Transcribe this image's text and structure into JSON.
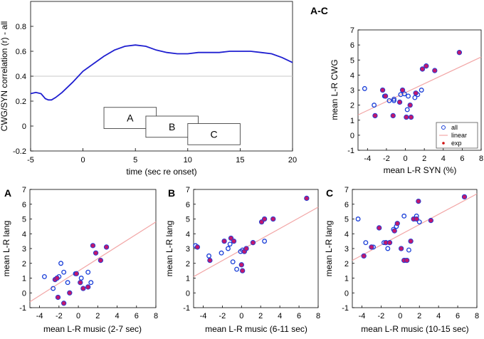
{
  "colors": {
    "line": "#1f1fd0",
    "fit": "#f2a6a6",
    "exp_fill": "#c0186e",
    "open_edge": "#1a3fd8",
    "refline": "#c8c8c8"
  },
  "chart_data": [
    {
      "id": "timecourse",
      "type": "line",
      "xlabel": "time (sec re onset)",
      "ylabel": "CWG/SYN correlation (r) - all",
      "xlim": [
        -5,
        20
      ],
      "ylim": [
        -0.2,
        1.0
      ],
      "xticks": [
        "-5",
        "0",
        "5",
        "10",
        "15",
        "20"
      ],
      "yticks": [
        "-0.2",
        "0",
        "0.2",
        "0.4",
        "0.6",
        "0.8"
      ],
      "reference_y": 0.4,
      "x": [
        -5,
        -4.5,
        -4,
        -3.6,
        -3.3,
        -3,
        -2.6,
        -2,
        -1,
        0,
        1,
        2,
        3,
        4,
        5,
        6,
        7,
        8,
        9,
        10,
        11,
        12,
        13,
        14,
        15,
        16,
        17,
        18,
        19,
        20
      ],
      "y": [
        0.26,
        0.27,
        0.26,
        0.22,
        0.21,
        0.21,
        0.23,
        0.27,
        0.35,
        0.44,
        0.5,
        0.56,
        0.61,
        0.64,
        0.65,
        0.64,
        0.61,
        0.59,
        0.58,
        0.58,
        0.59,
        0.59,
        0.59,
        0.6,
        0.6,
        0.6,
        0.59,
        0.58,
        0.55,
        0.51
      ],
      "windows": [
        {
          "label": "A",
          "start": 2,
          "end": 7
        },
        {
          "label": "B",
          "start": 6,
          "end": 11
        },
        {
          "label": "C",
          "start": 10,
          "end": 15
        }
      ]
    },
    {
      "id": "scatter-ac",
      "type": "scatter",
      "panel_label": "A-C",
      "xlabel": "mean L-R SYN (%)",
      "ylabel": "mean L-R CWG",
      "xlim": [
        -5,
        8
      ],
      "ylim": [
        -1,
        7
      ],
      "xticks": [
        "-4",
        "-2",
        "0",
        "2",
        "4",
        "6",
        "8"
      ],
      "yticks": [
        "-1",
        "0",
        "1",
        "2",
        "3",
        "4",
        "5",
        "6",
        "7"
      ],
      "fit": {
        "x": [
          -5,
          8
        ],
        "y": [
          1.35,
          5.2
        ]
      },
      "legend": {
        "entries": [
          "all",
          "linear",
          "exp"
        ],
        "position": "bottom-right"
      },
      "series": [
        {
          "name": "all",
          "points": [
            [
              -4.3,
              3.1
            ],
            [
              -3.3,
              2.0
            ],
            [
              -2.2,
              2.6
            ],
            [
              -1.7,
              2.3
            ],
            [
              -1.2,
              2.3
            ],
            [
              -1.2,
              2.4
            ],
            [
              -0.5,
              2.7
            ],
            [
              -0.1,
              2.75
            ],
            [
              0.2,
              1.7
            ],
            [
              0.3,
              2.6
            ],
            [
              1.0,
              2.5
            ],
            [
              1.3,
              2.7
            ],
            [
              1.7,
              3.0
            ]
          ]
        },
        {
          "name": "exp",
          "points": [
            [
              -3.2,
              1.3
            ],
            [
              -2.4,
              3.0
            ],
            [
              -2.1,
              2.6
            ],
            [
              -1.3,
              1.3
            ],
            [
              -0.6,
              2.2
            ],
            [
              -0.3,
              3.0
            ],
            [
              0.1,
              1.2
            ],
            [
              0.5,
              2.0
            ],
            [
              0.6,
              1.2
            ],
            [
              1.1,
              2.8
            ],
            [
              1.8,
              4.4
            ],
            [
              2.2,
              4.6
            ],
            [
              3.1,
              4.3
            ],
            [
              5.7,
              5.5
            ]
          ]
        }
      ]
    },
    {
      "id": "scatter-a",
      "type": "scatter",
      "panel_label": "A",
      "xlabel": "mean L-R music (2-7 sec)",
      "ylabel": "mean L-R lang",
      "xlim": [
        -5,
        8
      ],
      "ylim": [
        -1,
        7
      ],
      "xticks": [
        "-4",
        "-2",
        "0",
        "2",
        "4",
        "6",
        "8"
      ],
      "yticks": [
        "-1",
        "0",
        "1",
        "2",
        "3",
        "4",
        "5",
        "6",
        "7"
      ],
      "fit": {
        "x": [
          -5,
          8
        ],
        "y": [
          -0.6,
          4.8
        ]
      },
      "series": [
        {
          "name": "all",
          "points": [
            [
              -3.5,
              1.1
            ],
            [
              -2.6,
              0.3
            ],
            [
              -2.0,
              1.1
            ],
            [
              -1.8,
              2.0
            ],
            [
              -1.5,
              1.4
            ],
            [
              -1.1,
              0.7
            ],
            [
              -0.3,
              1.3
            ],
            [
              0.3,
              1.0
            ],
            [
              1.0,
              1.4
            ],
            [
              1.3,
              0.7
            ]
          ]
        },
        {
          "name": "exp",
          "points": [
            [
              -2.4,
              0.9
            ],
            [
              -2.2,
              1.0
            ],
            [
              -2.1,
              -0.3
            ],
            [
              -1.5,
              -0.7
            ],
            [
              -0.9,
              0.0
            ],
            [
              -0.2,
              1.3
            ],
            [
              0.2,
              0.7
            ],
            [
              0.5,
              0.3
            ],
            [
              1.0,
              0.4
            ],
            [
              1.5,
              3.2
            ],
            [
              1.8,
              2.7
            ],
            [
              2.3,
              2.2
            ],
            [
              2.9,
              3.1
            ]
          ]
        }
      ]
    },
    {
      "id": "scatter-b",
      "type": "scatter",
      "panel_label": "B",
      "xlabel": "mean L-R music (6-11 sec)",
      "ylabel": "mean L-R lang",
      "xlim": [
        -5,
        8
      ],
      "ylim": [
        -1,
        7
      ],
      "xticks": [
        "-4",
        "-2",
        "0",
        "2",
        "4",
        "6",
        "8"
      ],
      "yticks": [
        "-1",
        "0",
        "1",
        "2",
        "3",
        "4",
        "5",
        "6",
        "7"
      ],
      "fit": {
        "x": [
          -5,
          8
        ],
        "y": [
          1.1,
          5.8
        ]
      },
      "series": [
        {
          "name": "all",
          "points": [
            [
              -4.8,
              3.2
            ],
            [
              -3.4,
              2.5
            ],
            [
              -2.1,
              2.7
            ],
            [
              -1.4,
              3.0
            ],
            [
              -1.2,
              3.3
            ],
            [
              -0.9,
              2.1
            ],
            [
              -0.5,
              1.6
            ],
            [
              -0.1,
              2.8
            ],
            [
              0.1,
              2.9
            ],
            [
              2.4,
              3.5
            ]
          ]
        },
        {
          "name": "exp",
          "points": [
            [
              -4.6,
              3.1
            ],
            [
              -3.3,
              2.2
            ],
            [
              -1.8,
              3.5
            ],
            [
              -1.1,
              3.7
            ],
            [
              -0.8,
              3.5
            ],
            [
              0.0,
              1.9
            ],
            [
              0.1,
              1.5
            ],
            [
              0.3,
              2.8
            ],
            [
              0.5,
              3.0
            ],
            [
              1.2,
              3.4
            ],
            [
              2.1,
              4.8
            ],
            [
              2.4,
              5.0
            ],
            [
              3.3,
              5.0
            ],
            [
              6.8,
              6.4
            ]
          ]
        }
      ]
    },
    {
      "id": "scatter-c",
      "type": "scatter",
      "panel_label": "C",
      "xlabel": "mean L-R music (10-15 sec)",
      "ylabel": "mean L-R lang",
      "xlim": [
        -5,
        8
      ],
      "ylim": [
        -1,
        7
      ],
      "xticks": [
        "-4",
        "-2",
        "0",
        "2",
        "4",
        "6",
        "8"
      ],
      "yticks": [
        "-1",
        "0",
        "1",
        "2",
        "3",
        "4",
        "5",
        "6",
        "7"
      ],
      "fit": {
        "x": [
          -5,
          8
        ],
        "y": [
          2.2,
          6.7
        ]
      },
      "series": [
        {
          "name": "all",
          "points": [
            [
              -4.4,
              5.0
            ],
            [
              -3.6,
              3.4
            ],
            [
              -2.8,
              3.1
            ],
            [
              -2.2,
              4.4
            ],
            [
              -1.7,
              3.4
            ],
            [
              -1.3,
              3.0
            ],
            [
              -0.7,
              4.3
            ],
            [
              -0.4,
              4.5
            ],
            [
              0.4,
              5.2
            ],
            [
              0.5,
              2.2
            ],
            [
              0.9,
              2.9
            ],
            [
              1.7,
              5.2
            ],
            [
              2.0,
              4.8
            ]
          ]
        },
        {
          "name": "exp",
          "points": [
            [
              -3.8,
              2.5
            ],
            [
              -3.0,
              3.1
            ],
            [
              -2.2,
              4.4
            ],
            [
              -1.5,
              3.4
            ],
            [
              -1.1,
              3.4
            ],
            [
              -0.6,
              4.2
            ],
            [
              -0.3,
              4.7
            ],
            [
              0.1,
              3.0
            ],
            [
              0.4,
              2.2
            ],
            [
              0.7,
              2.2
            ],
            [
              1.1,
              3.5
            ],
            [
              1.4,
              5.0
            ],
            [
              1.7,
              5.0
            ],
            [
              1.9,
              6.2
            ],
            [
              3.2,
              4.9
            ],
            [
              6.7,
              6.5
            ]
          ]
        }
      ]
    }
  ]
}
